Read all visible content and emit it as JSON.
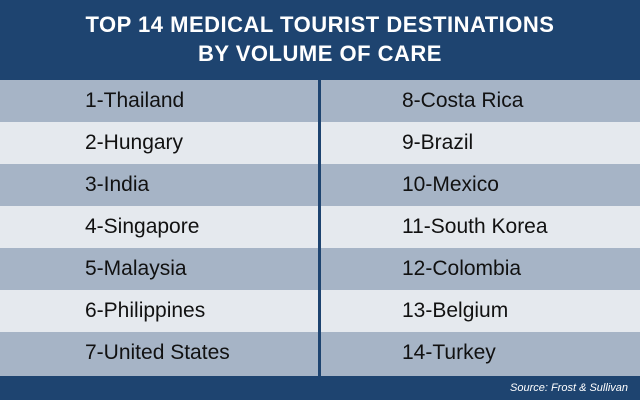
{
  "title": {
    "line1": "TOP 14 MEDICAL TOURIST DESTINATIONS",
    "line2": "BY VOLUME OF CARE"
  },
  "left_column": [
    "1-Thailand",
    "2-Hungary",
    "3-India",
    "4-Singapore",
    "5-Malaysia",
    "6-Philippines",
    "7-United States"
  ],
  "right_column": [
    "8-Costa Rica",
    "9-Brazil",
    "10-Mexico",
    "11-South Korea",
    "12-Colombia",
    "13-Belgium",
    "14-Turkey"
  ],
  "source": "Source: Frost & Sullivan",
  "colors": {
    "navy": "#1e4470",
    "row_dark": "#a6b4c6",
    "row_light": "#e5e9ee"
  }
}
